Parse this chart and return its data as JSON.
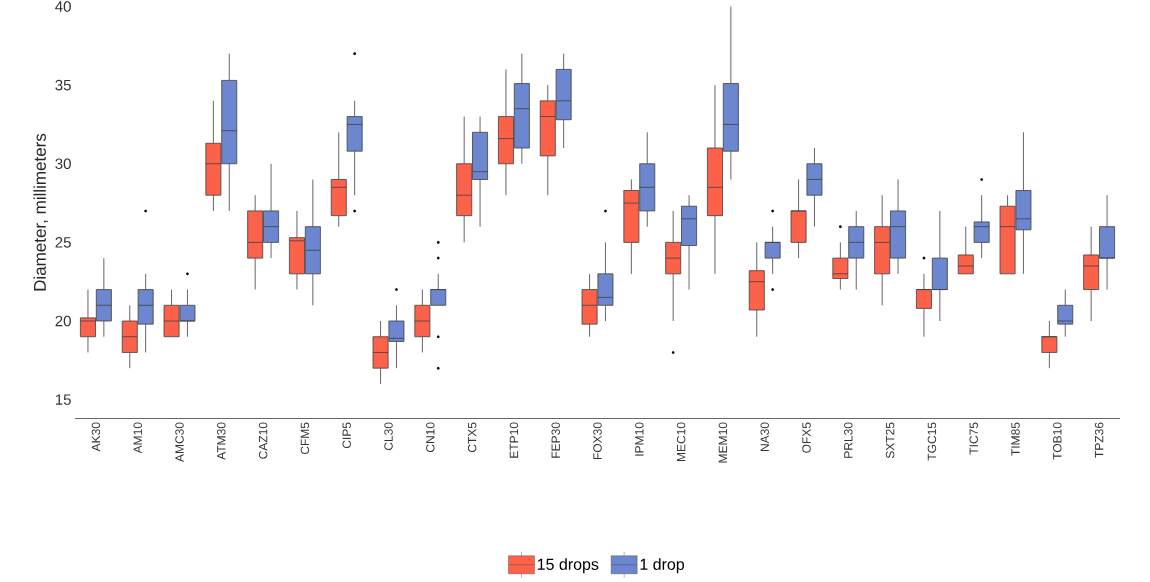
{
  "chart_data": {
    "type": "box",
    "ylabel": "Diameter, millimeters",
    "categories": [
      "AK30",
      "AM10",
      "AMC30",
      "ATM30",
      "CAZ10",
      "CFM5",
      "CIP5",
      "CL30",
      "CN10",
      "CTX5",
      "ETP10",
      "FEP30",
      "FOX30",
      "IPM10",
      "MEC10",
      "MEM10",
      "NA30",
      "OFX5",
      "PRL30",
      "SXT25",
      "TGC15",
      "TIC75",
      "TIM85",
      "TOB10",
      "TPZ36"
    ],
    "ylim": [
      13.8,
      40
    ],
    "yticks": [
      15,
      20,
      25,
      30,
      35,
      40
    ],
    "legend": "bottom",
    "series": [
      {
        "name": "15 drops",
        "color": "#fb6249",
        "boxes": [
          {
            "low": 18,
            "q1": 19,
            "median": 20,
            "q3": 20.2,
            "high": 22
          },
          {
            "low": 17,
            "q1": 18,
            "median": 19,
            "q3": 20,
            "high": 21
          },
          {
            "low": 19,
            "q1": 19,
            "median": 20,
            "q3": 21,
            "high": 22
          },
          {
            "low": 27,
            "q1": 28,
            "median": 30,
            "q3": 31.3,
            "high": 34
          },
          {
            "low": 22,
            "q1": 24,
            "median": 25,
            "q3": 27,
            "high": 28
          },
          {
            "low": 22,
            "q1": 23,
            "median": 25.1,
            "q3": 25.3,
            "high": 27
          },
          {
            "low": 26,
            "q1": 26.7,
            "median": 28.5,
            "q3": 29,
            "high": 32
          },
          {
            "low": 16,
            "q1": 17,
            "median": 18,
            "q3": 19,
            "high": 20
          },
          {
            "low": 18,
            "q1": 19,
            "median": 20,
            "q3": 21,
            "high": 22
          },
          {
            "low": 25,
            "q1": 26.7,
            "median": 28,
            "q3": 30,
            "high": 33
          },
          {
            "low": 28,
            "q1": 30,
            "median": 31.6,
            "q3": 33,
            "high": 36
          },
          {
            "low": 28,
            "q1": 30.5,
            "median": 33,
            "q3": 34,
            "high": 35
          },
          {
            "low": 19,
            "q1": 19.8,
            "median": 21,
            "q3": 22,
            "high": 23
          },
          {
            "low": 23,
            "q1": 25,
            "median": 27.5,
            "q3": 28.3,
            "high": 29
          },
          {
            "low": 20,
            "q1": 23,
            "median": 24,
            "q3": 25,
            "high": 27,
            "outliers": [
              18
            ]
          },
          {
            "low": 23,
            "q1": 26.7,
            "median": 28.5,
            "q3": 31,
            "high": 35
          },
          {
            "low": 19,
            "q1": 20.7,
            "median": 22.5,
            "q3": 23.2,
            "high": 25
          },
          {
            "low": 24,
            "q1": 25,
            "median": 27,
            "q3": 27,
            "high": 29
          },
          {
            "low": 22,
            "q1": 22.7,
            "median": 23,
            "q3": 24,
            "high": 25,
            "outliers": [
              26
            ]
          },
          {
            "low": 21,
            "q1": 23,
            "median": 25,
            "q3": 26,
            "high": 28
          },
          {
            "low": 19,
            "q1": 20.8,
            "median": 22,
            "q3": 22,
            "high": 23,
            "outliers": [
              24
            ]
          },
          {
            "low": 23,
            "q1": 23,
            "median": 23.5,
            "q3": 24.2,
            "high": 26
          },
          {
            "low": 23,
            "q1": 23,
            "median": 26,
            "q3": 27.3,
            "high": 28
          },
          {
            "low": 17,
            "q1": 18,
            "median": 19,
            "q3": 19,
            "high": 20
          },
          {
            "low": 20,
            "q1": 22,
            "median": 23.5,
            "q3": 24.2,
            "high": 26
          }
        ]
      },
      {
        "name": "1 drop",
        "color": "#6c87cf",
        "boxes": [
          {
            "low": 19,
            "q1": 20,
            "median": 21,
            "q3": 22,
            "high": 24
          },
          {
            "low": 18,
            "q1": 19.8,
            "median": 21,
            "q3": 22,
            "high": 23,
            "outliers": [
              27
            ]
          },
          {
            "low": 19,
            "q1": 20,
            "median": 20,
            "q3": 21,
            "high": 22,
            "outliers": [
              23
            ]
          },
          {
            "low": 27,
            "q1": 30,
            "median": 32.1,
            "q3": 35.3,
            "high": 37
          },
          {
            "low": 24,
            "q1": 25,
            "median": 26,
            "q3": 27,
            "high": 30
          },
          {
            "low": 21,
            "q1": 23,
            "median": 24.5,
            "q3": 26,
            "high": 29
          },
          {
            "low": 28,
            "q1": 30.8,
            "median": 32.5,
            "q3": 33,
            "high": 34,
            "outliers": [
              37,
              27
            ]
          },
          {
            "low": 17,
            "q1": 18.7,
            "median": 18.9,
            "q3": 20,
            "high": 21,
            "outliers": [
              22
            ]
          },
          {
            "low": 21,
            "q1": 21,
            "median": 22,
            "q3": 22,
            "high": 23,
            "outliers": [
              25,
              24,
              19,
              17
            ]
          },
          {
            "low": 26,
            "q1": 29,
            "median": 29.5,
            "q3": 32,
            "high": 33
          },
          {
            "low": 30,
            "q1": 31,
            "median": 33.5,
            "q3": 35.1,
            "high": 37
          },
          {
            "low": 31,
            "q1": 32.8,
            "median": 34,
            "q3": 36,
            "high": 37
          },
          {
            "low": 20,
            "q1": 21,
            "median": 21.5,
            "q3": 23,
            "high": 25,
            "outliers": [
              27
            ]
          },
          {
            "low": 26,
            "q1": 27,
            "median": 28.5,
            "q3": 30,
            "high": 32
          },
          {
            "low": 22,
            "q1": 24.8,
            "median": 26.5,
            "q3": 27.3,
            "high": 28
          },
          {
            "low": 29,
            "q1": 30.8,
            "median": 32.5,
            "q3": 35.1,
            "high": 40
          },
          {
            "low": 23,
            "q1": 24,
            "median": 25,
            "q3": 25,
            "high": 26,
            "outliers": [
              27,
              22
            ]
          },
          {
            "low": 26,
            "q1": 28,
            "median": 29,
            "q3": 30,
            "high": 31
          },
          {
            "low": 22,
            "q1": 24,
            "median": 25,
            "q3": 26,
            "high": 27
          },
          {
            "low": 23,
            "q1": 24,
            "median": 26,
            "q3": 27,
            "high": 29
          },
          {
            "low": 20,
            "q1": 22,
            "median": 22,
            "q3": 24,
            "high": 27
          },
          {
            "low": 24,
            "q1": 25,
            "median": 26,
            "q3": 26.3,
            "high": 28,
            "outliers": [
              29
            ]
          },
          {
            "low": 23,
            "q1": 25.8,
            "median": 26.5,
            "q3": 28.3,
            "high": 32
          },
          {
            "low": 19,
            "q1": 19.8,
            "median": 20,
            "q3": 21,
            "high": 22
          },
          {
            "low": 22,
            "q1": 24,
            "median": 24,
            "q3": 26,
            "high": 28
          }
        ]
      }
    ]
  }
}
